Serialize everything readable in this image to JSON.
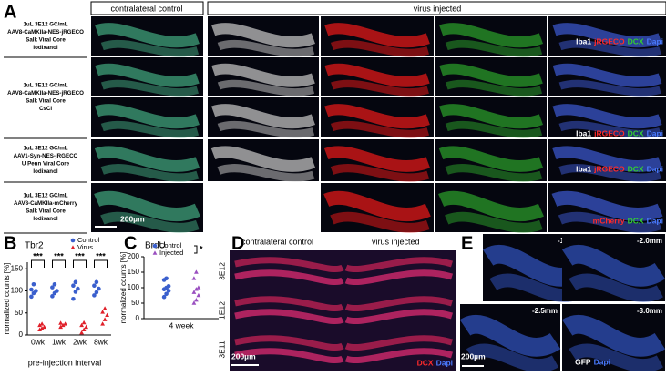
{
  "panel_a": {
    "label": "A",
    "headers": [
      "contralateral control",
      "virus injected"
    ],
    "rows": [
      [
        "1uL 3E12 GC/mL",
        "AAV8-CaMKIIa-NES-jRGECO",
        "Salk Viral Core",
        "Iodixanol"
      ],
      [
        "1uL 3E12 GC/mL",
        "AAV8-CaMKIIa-NES-jRGECO",
        "Salk Viral Core",
        "CsCl"
      ],
      [
        "1uL 3E12 GC/mL",
        "AAV1-Syn-NES-jRGECO",
        "U Penn Viral Core",
        "Iodixanol"
      ],
      [
        "1uL 3E12 GC/mL",
        "AAV8-CaMKIIa-mCherry",
        "Salk Viral Core",
        "Iodixanol"
      ]
    ],
    "stains": [
      [
        {
          "text": "Iba1",
          "color": "#ffffff"
        },
        {
          "text": "jRGECO",
          "color": "#ff2a2a"
        },
        {
          "text": "DCX",
          "color": "#33cc33"
        },
        {
          "text": "Dapi",
          "color": "#4a7bff"
        }
      ],
      [
        {
          "text": "Iba1",
          "color": "#ffffff"
        },
        {
          "text": "jRGECO",
          "color": "#ff2a2a"
        },
        {
          "text": "DCX",
          "color": "#33cc33"
        },
        {
          "text": "Dapi",
          "color": "#4a7bff"
        }
      ],
      [
        {
          "text": "Iba1",
          "color": "#ffffff"
        },
        {
          "text": "jRGECO",
          "color": "#ff2a2a"
        },
        {
          "text": "DCX",
          "color": "#33cc33"
        },
        {
          "text": "Dapi",
          "color": "#4a7bff"
        }
      ],
      [
        {
          "text": "mCherry",
          "color": "#ff2a2a"
        },
        {
          "text": "DCX",
          "color": "#33cc33"
        },
        {
          "text": "Dapi",
          "color": "#4a7bff"
        }
      ]
    ],
    "scale_bar": "200µm"
  },
  "chart_data": [
    {
      "type": "scatter",
      "label": "B",
      "title": "Tbr2",
      "y_label": "normalized counts [%]",
      "x_label": "pre-injection interval",
      "categories": [
        "0wk",
        "1wk",
        "2wk",
        "8wk"
      ],
      "ylim": [
        0,
        165
      ],
      "yticks": [
        0,
        50,
        100,
        150
      ],
      "significance": [
        "***",
        "***",
        "***",
        "***"
      ],
      "series": [
        {
          "name": "Control",
          "color": "#3a5fcd",
          "marker": "circle",
          "values": [
            [
              87,
              95,
              100,
              103,
              115
            ],
            [
              88,
              95,
              100,
              108,
              115
            ],
            [
              82,
              98,
              105,
              112,
              120
            ],
            [
              90,
              97,
              105,
              112,
              120
            ]
          ]
        },
        {
          "name": "Virus",
          "color": "#e0202a",
          "marker": "triangle",
          "values": [
            [
              12,
              15,
              18,
              22,
              25
            ],
            [
              18,
              22,
              25,
              27
            ],
            [
              5,
              12,
              18,
              22,
              28
            ],
            [
              25,
              35,
              45,
              52,
              60
            ]
          ]
        }
      ]
    },
    {
      "type": "scatter",
      "label": "C",
      "title": "BrdU",
      "y_label": "normalized counts [%]",
      "categories": [
        "4 week"
      ],
      "ylim": [
        0,
        200
      ],
      "yticks": [
        0,
        50,
        100,
        150,
        200
      ],
      "significance": [
        "*"
      ],
      "series": [
        {
          "name": "Control",
          "color": "#3a5fcd",
          "marker": "circle",
          "values": [
            [
              70,
              80,
              90,
              95,
              100,
              105,
              125,
              130
            ]
          ]
        },
        {
          "name": "Injected",
          "color": "#9a4fc0",
          "marker": "triangle",
          "values": [
            [
              50,
              60,
              75,
              85,
              95,
              100,
              130,
              150
            ]
          ]
        }
      ]
    }
  ],
  "panel_d": {
    "label": "D",
    "headers": [
      "contralateral control",
      "virus injected"
    ],
    "rows": [
      "3E12",
      "1E12",
      "3E11"
    ],
    "stains": [
      {
        "text": "DCX",
        "color": "#ff2a2a"
      },
      {
        "text": "Dapi",
        "color": "#4a7bff"
      }
    ],
    "scale_bar": "200µm"
  },
  "panel_e": {
    "label": "E",
    "positions": [
      "-1.5mm",
      "-2.0mm",
      "-2.5mm",
      "-3.0mm"
    ],
    "stains": [
      {
        "text": "GFP",
        "color": "#ffffff"
      },
      {
        "text": "Dapi",
        "color": "#4a7bff"
      }
    ],
    "scale_bar": "200µm"
  }
}
